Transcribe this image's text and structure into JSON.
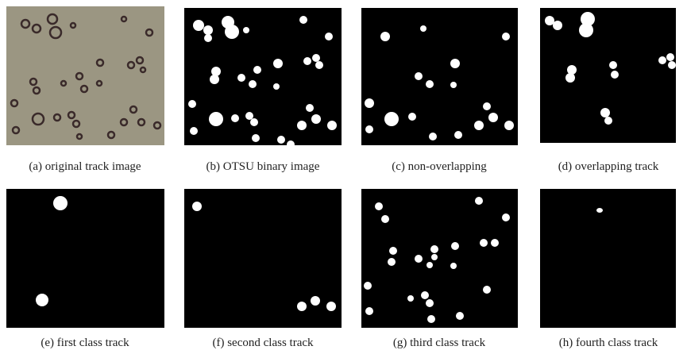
{
  "figure": {
    "panels": [
      {
        "caption": "(a) original track image"
      },
      {
        "caption": "(b) OTSU binary image"
      },
      {
        "caption": "(c) non-overlapping"
      },
      {
        "caption": "(d) overlapping track"
      },
      {
        "caption": "(e) first class track"
      },
      {
        "caption": "(f) second class track"
      },
      {
        "caption": "(g) third class track"
      },
      {
        "caption": "(h) fourth class track"
      }
    ]
  }
}
